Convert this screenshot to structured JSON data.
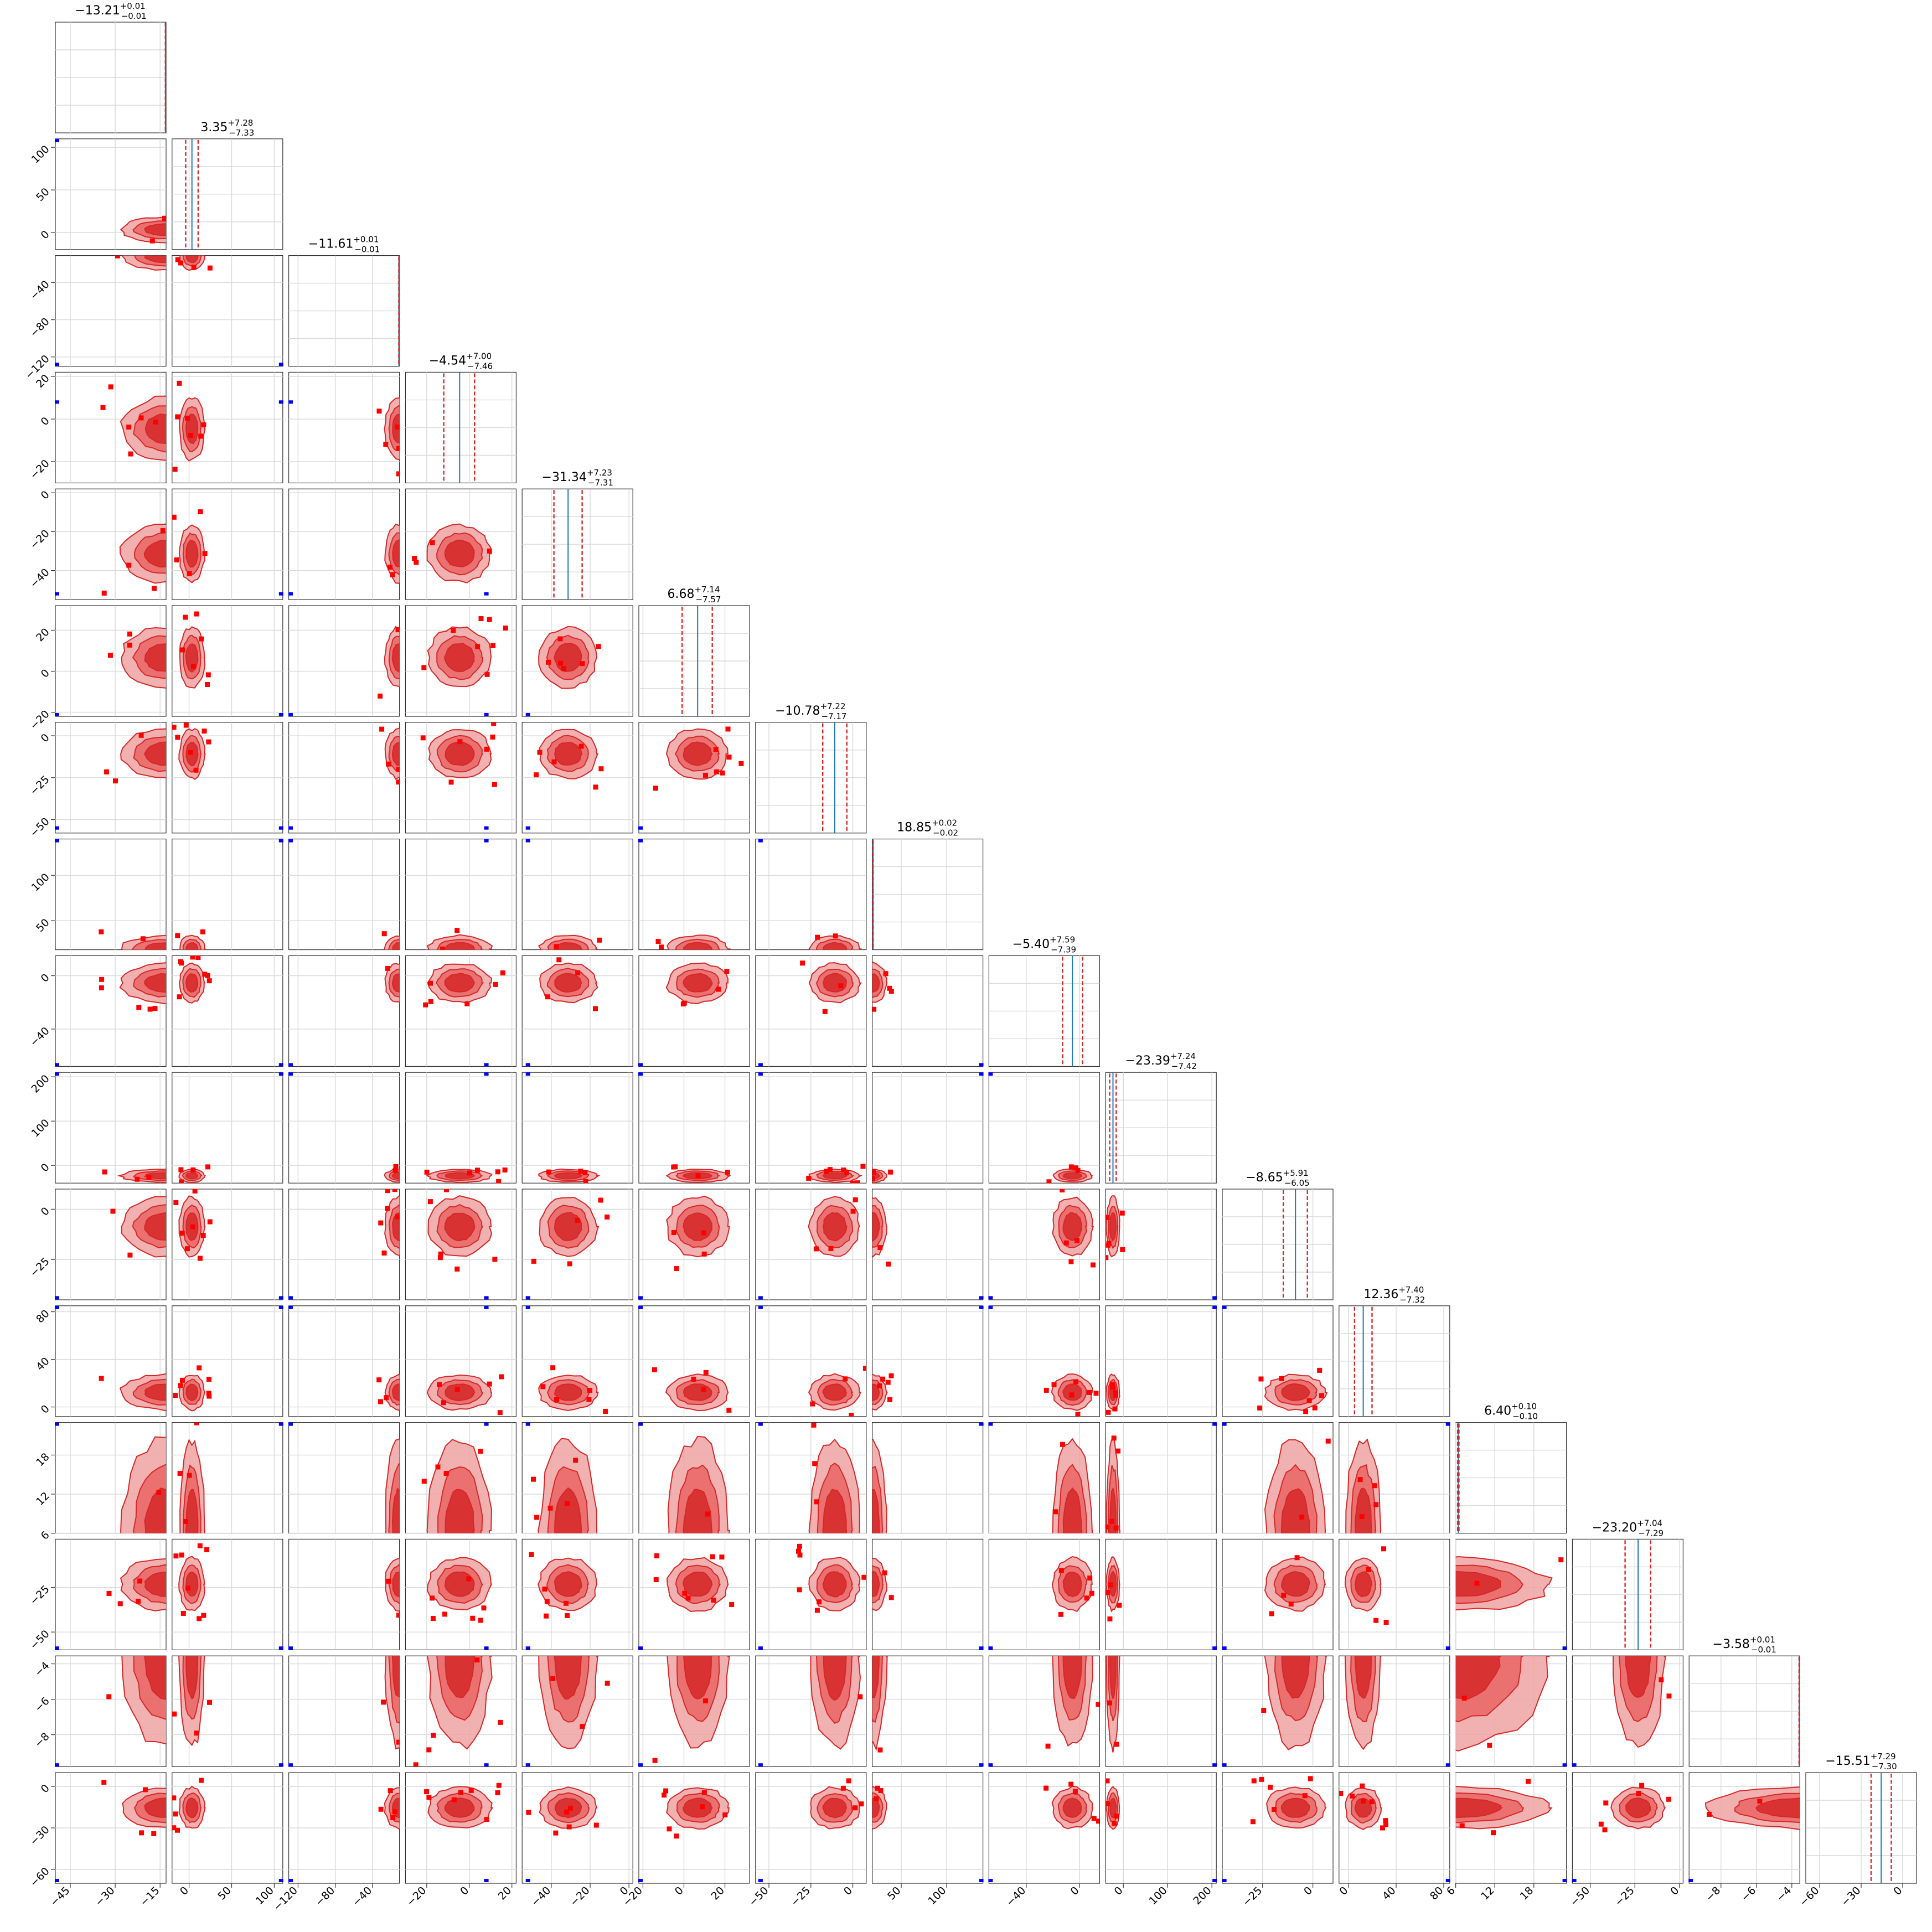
{
  "chart_data": {
    "type": "corner",
    "n_params": 16,
    "grid": true,
    "colors": {
      "contour": "#d62728",
      "truth": "#0000ff",
      "hist_edge": "#1f77b4",
      "quantile": "#d62728",
      "grid": "#d9d9d9"
    },
    "titles": [
      {
        "median": "−13.21",
        "plus": "+0.01",
        "minus": "−0.01"
      },
      {
        "median": "3.35",
        "plus": "+7.28",
        "minus": "−7.33"
      },
      {
        "median": "−11.61",
        "plus": "+0.01",
        "minus": "−0.01"
      },
      {
        "median": "−4.54",
        "plus": "+7.00",
        "minus": "−7.46"
      },
      {
        "median": "−31.34",
        "plus": "+7.23",
        "minus": "−7.31"
      },
      {
        "median": "6.68",
        "plus": "+7.14",
        "minus": "−7.57"
      },
      {
        "median": "−10.78",
        "plus": "+7.22",
        "minus": "−7.17"
      },
      {
        "median": "18.85",
        "plus": "+0.02",
        "minus": "−0.02"
      },
      {
        "median": "−5.40",
        "plus": "+7.59",
        "minus": "−7.39"
      },
      {
        "median": "−23.39",
        "plus": "+7.24",
        "minus": "−7.42"
      },
      {
        "median": "−8.65",
        "plus": "+5.91",
        "minus": "−6.05"
      },
      {
        "median": "12.36",
        "plus": "+7.40",
        "minus": "−7.32"
      },
      {
        "median": "6.40",
        "plus": "+0.10",
        "minus": "−0.10"
      },
      {
        "median": "−23.20",
        "plus": "+7.04",
        "minus": "−7.29"
      },
      {
        "median": "−3.58",
        "plus": "+0.01",
        "minus": "−0.01"
      },
      {
        "median": "−15.51",
        "plus": "+7.29",
        "minus": "−7.30"
      }
    ],
    "parameters": [
      {
        "range": [
          -50,
          -13
        ],
        "median": -13.21,
        "lo": -13.22,
        "hi": -13.2,
        "truth": -49.5,
        "xticks": [
          {
            "v": -45,
            "label": "−45"
          },
          {
            "v": -30,
            "label": "−30"
          },
          {
            "v": -15,
            "label": "−15"
          }
        ],
        "yticks": []
      },
      {
        "range": [
          -20,
          110
        ],
        "median": 3.35,
        "lo": -3.98,
        "hi": 10.63,
        "truth": 110,
        "xticks": [
          {
            "v": 0,
            "label": "0"
          },
          {
            "v": 50,
            "label": "50"
          },
          {
            "v": 100,
            "label": "100"
          }
        ],
        "yticks": [
          {
            "v": 0,
            "label": "0"
          },
          {
            "v": 50,
            "label": "50"
          },
          {
            "v": 100,
            "label": "100"
          }
        ]
      },
      {
        "range": [
          -130,
          -11
        ],
        "median": -11.61,
        "lo": -11.62,
        "hi": -11.6,
        "truth": -128,
        "xticks": [
          {
            "v": -120,
            "label": "−120"
          },
          {
            "v": -80,
            "label": "−80"
          },
          {
            "v": -40,
            "label": "−40"
          }
        ],
        "yticks": [
          {
            "v": -40,
            "label": "−40"
          },
          {
            "v": -80,
            "label": "−80"
          },
          {
            "v": -120,
            "label": "−120"
          }
        ]
      },
      {
        "range": [
          -30,
          22
        ],
        "median": -4.54,
        "lo": -12.0,
        "hi": 2.46,
        "truth": 8,
        "xticks": [
          {
            "v": -20,
            "label": "−20"
          },
          {
            "v": 0,
            "label": "0"
          },
          {
            "v": 20,
            "label": "20"
          }
        ],
        "yticks": [
          {
            "v": 20,
            "label": "20"
          },
          {
            "v": 0,
            "label": "0"
          },
          {
            "v": -20,
            "label": "−20"
          }
        ]
      },
      {
        "range": [
          -55,
          2
        ],
        "median": -31.34,
        "lo": -38.65,
        "hi": -24.11,
        "truth": -52,
        "xticks": [
          {
            "v": -40,
            "label": "−40"
          },
          {
            "v": -20,
            "label": "−20"
          },
          {
            "v": 0,
            "label": "0"
          }
        ],
        "yticks": [
          {
            "v": 0,
            "label": "0"
          },
          {
            "v": -20,
            "label": "−20"
          },
          {
            "v": -40,
            "label": "−40"
          }
        ]
      },
      {
        "range": [
          -22,
          32
        ],
        "median": 6.68,
        "lo": -0.89,
        "hi": 13.82,
        "truth": -22,
        "xticks": [
          {
            "v": -20,
            "label": "−20"
          },
          {
            "v": 0,
            "label": "0"
          },
          {
            "v": 20,
            "label": "20"
          }
        ],
        "yticks": [
          {
            "v": 20,
            "label": "20"
          },
          {
            "v": 0,
            "label": "0"
          },
          {
            "v": -20,
            "label": "−20"
          }
        ]
      },
      {
        "range": [
          -58,
          8
        ],
        "median": -10.78,
        "lo": -17.95,
        "hi": -3.56,
        "truth": -55,
        "xticks": [
          {
            "v": -50,
            "label": "−50"
          },
          {
            "v": -25,
            "label": "−25"
          },
          {
            "v": 0,
            "label": "0"
          }
        ],
        "yticks": [
          {
            "v": 0,
            "label": "0"
          },
          {
            "v": -25,
            "label": "−25"
          },
          {
            "v": -50,
            "label": "−50"
          }
        ]
      },
      {
        "range": [
          18,
          140
        ],
        "median": 18.85,
        "lo": 18.83,
        "hi": 18.87,
        "truth": 140,
        "xticks": [
          {
            "v": 50,
            "label": "50"
          },
          {
            "v": 100,
            "label": "100"
          }
        ],
        "yticks": [
          {
            "v": 100,
            "label": "100"
          },
          {
            "v": 50,
            "label": "50"
          }
        ]
      },
      {
        "range": [
          -68,
          15
        ],
        "median": -5.4,
        "lo": -12.79,
        "hi": 2.19,
        "truth": -67,
        "xticks": [
          {
            "v": -40,
            "label": "−40"
          },
          {
            "v": 0,
            "label": "0"
          }
        ],
        "yticks": [
          {
            "v": 0,
            "label": "0"
          },
          {
            "v": -40,
            "label": "−40"
          }
        ]
      },
      {
        "range": [
          -40,
          210
        ],
        "median": -23.39,
        "lo": -30.81,
        "hi": -16.15,
        "truth": 208,
        "xticks": [
          {
            "v": 0,
            "label": "0"
          },
          {
            "v": 100,
            "label": "100"
          },
          {
            "v": 200,
            "label": "200"
          }
        ],
        "yticks": [
          {
            "v": 200,
            "label": "200"
          },
          {
            "v": 100,
            "label": "100"
          },
          {
            "v": 0,
            "label": "0"
          }
        ]
      },
      {
        "range": [
          -45,
          10
        ],
        "median": -8.65,
        "lo": -14.7,
        "hi": -2.74,
        "truth": -44,
        "xticks": [
          {
            "v": -25,
            "label": "−25"
          },
          {
            "v": 0,
            "label": "0"
          }
        ],
        "yticks": [
          {
            "v": 0,
            "label": "0"
          },
          {
            "v": -25,
            "label": "−25"
          }
        ]
      },
      {
        "range": [
          -8,
          85
        ],
        "median": 12.36,
        "lo": 5.04,
        "hi": 19.76,
        "truth": 85,
        "xticks": [
          {
            "v": 0,
            "label": "0"
          },
          {
            "v": 40,
            "label": "40"
          },
          {
            "v": 80,
            "label": "80"
          }
        ],
        "yticks": [
          {
            "v": 80,
            "label": "80"
          },
          {
            "v": 40,
            "label": "40"
          },
          {
            "v": 0,
            "label": "0"
          }
        ]
      },
      {
        "range": [
          6,
          23
        ],
        "median": 6.4,
        "lo": 6.3,
        "hi": 6.5,
        "truth": 23,
        "xticks": [
          {
            "v": 6,
            "label": "6"
          },
          {
            "v": 12,
            "label": "12"
          },
          {
            "v": 18,
            "label": "18"
          }
        ],
        "yticks": [
          {
            "v": 18,
            "label": "18"
          },
          {
            "v": 12,
            "label": "12"
          },
          {
            "v": 6,
            "label": "6"
          }
        ]
      },
      {
        "range": [
          -60,
          2
        ],
        "median": -23.2,
        "lo": -30.49,
        "hi": -16.16,
        "truth": -59,
        "xticks": [
          {
            "v": -50,
            "label": "−50"
          },
          {
            "v": -25,
            "label": "−25"
          },
          {
            "v": 0,
            "label": "0"
          }
        ],
        "yticks": [
          {
            "v": -25,
            "label": "−25"
          },
          {
            "v": -50,
            "label": "−50"
          }
        ]
      },
      {
        "range": [
          -9.8,
          -3.55
        ],
        "median": -3.58,
        "lo": -3.59,
        "hi": -3.57,
        "truth": -9.8,
        "xticks": [
          {
            "v": -8,
            "label": "−8"
          },
          {
            "v": -6,
            "label": "−6"
          },
          {
            "v": -4,
            "label": "−4"
          }
        ],
        "yticks": [
          {
            "v": -4,
            "label": "−4"
          },
          {
            "v": -6,
            "label": "−6"
          },
          {
            "v": -8,
            "label": "−8"
          }
        ]
      },
      {
        "range": [
          -70,
          10
        ],
        "median": -15.51,
        "lo": -22.81,
        "hi": -8.22,
        "truth": -68,
        "xticks": [
          {
            "v": -60,
            "label": "−60"
          },
          {
            "v": -30,
            "label": "−30"
          },
          {
            "v": 0,
            "label": "0"
          }
        ],
        "yticks": [
          {
            "v": 0,
            "label": "0"
          },
          {
            "v": -30,
            "label": "−30"
          },
          {
            "v": -60,
            "label": "−60"
          }
        ]
      }
    ]
  }
}
